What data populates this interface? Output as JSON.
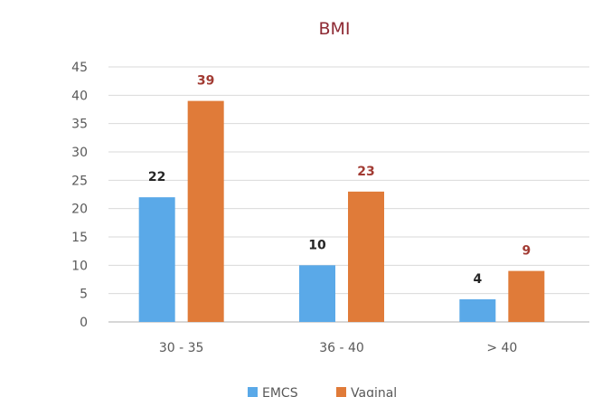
{
  "chart_data": {
    "type": "bar",
    "title": "BMI",
    "xlabel": "",
    "ylabel": "",
    "categories": [
      "30 - 35",
      "36 - 40",
      "> 40"
    ],
    "series": [
      {
        "name": "EMCS",
        "values": [
          22,
          10,
          4
        ],
        "color": "#5aa9e8",
        "label_color": "#262626"
      },
      {
        "name": "Vaginal",
        "values": [
          39,
          23,
          9
        ],
        "color": "#e07b39",
        "label_color": "#a23b33"
      }
    ],
    "ylim": [
      0,
      45
    ],
    "yticks": [
      0,
      5,
      10,
      15,
      20,
      25,
      30,
      35,
      40,
      45
    ],
    "grid": true,
    "legend_position": "bottom"
  }
}
